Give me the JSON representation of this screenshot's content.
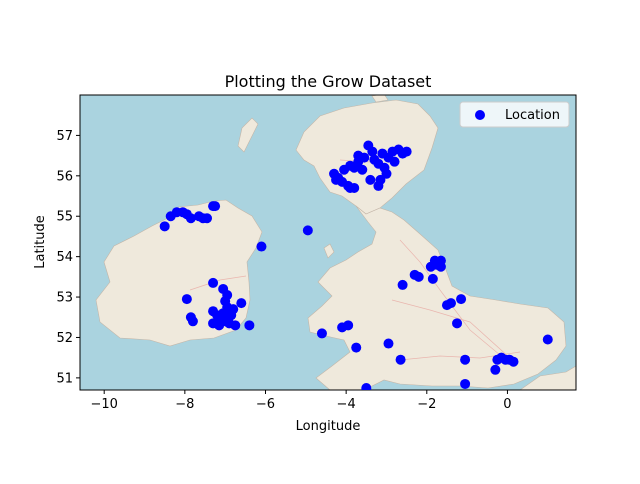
{
  "chart_data": {
    "type": "scatter",
    "title": "Plotting the Grow Dataset",
    "xlabel": "Longitude",
    "ylabel": "Latitude",
    "xlim": [
      -10.6,
      1.7
    ],
    "ylim": [
      50.7,
      58.0
    ],
    "xticks": [
      -10,
      -8,
      -6,
      -4,
      -2,
      0
    ],
    "yticks": [
      51,
      52,
      53,
      54,
      55,
      56,
      57
    ],
    "grid": false,
    "legend": {
      "position": "top-right",
      "label": "Location"
    },
    "marker_color": "#0000ff",
    "background": "map of the British Isles",
    "series": [
      {
        "name": "Location",
        "points": [
          [
            -8.5,
            54.75
          ],
          [
            -8.35,
            55.0
          ],
          [
            -8.2,
            55.1
          ],
          [
            -8.05,
            55.1
          ],
          [
            -7.95,
            55.05
          ],
          [
            -7.85,
            54.95
          ],
          [
            -7.65,
            55.0
          ],
          [
            -7.55,
            54.95
          ],
          [
            -7.45,
            54.95
          ],
          [
            -7.25,
            55.25
          ],
          [
            -7.3,
            55.25
          ],
          [
            -6.1,
            54.25
          ],
          [
            -4.95,
            54.65
          ],
          [
            -7.3,
            53.35
          ],
          [
            -7.95,
            52.95
          ],
          [
            -7.85,
            52.5
          ],
          [
            -7.8,
            52.4
          ],
          [
            -7.05,
            53.2
          ],
          [
            -6.95,
            53.05
          ],
          [
            -7.0,
            52.9
          ],
          [
            -6.8,
            52.7
          ],
          [
            -6.6,
            52.85
          ],
          [
            -7.3,
            52.65
          ],
          [
            -7.2,
            52.55
          ],
          [
            -7.1,
            52.45
          ],
          [
            -7.0,
            52.4
          ],
          [
            -6.9,
            52.35
          ],
          [
            -7.3,
            52.35
          ],
          [
            -7.15,
            52.3
          ],
          [
            -6.85,
            52.55
          ],
          [
            -6.75,
            52.3
          ],
          [
            -6.4,
            52.3
          ],
          [
            -6.95,
            52.75
          ],
          [
            -7.05,
            52.6
          ],
          [
            -4.6,
            52.1
          ],
          [
            -4.1,
            52.25
          ],
          [
            -3.95,
            52.3
          ],
          [
            -3.75,
            51.75
          ],
          [
            -3.5,
            50.75
          ],
          [
            -2.95,
            51.85
          ],
          [
            -2.65,
            51.45
          ],
          [
            -2.6,
            53.3
          ],
          [
            -2.3,
            53.55
          ],
          [
            -2.2,
            53.5
          ],
          [
            -1.85,
            53.45
          ],
          [
            -1.5,
            52.8
          ],
          [
            -1.4,
            52.85
          ],
          [
            -1.25,
            52.35
          ],
          [
            -1.15,
            52.95
          ],
          [
            -1.05,
            51.45
          ],
          [
            -1.05,
            50.85
          ],
          [
            -1.9,
            53.75
          ],
          [
            -1.8,
            53.9
          ],
          [
            -1.75,
            53.8
          ],
          [
            -1.65,
            53.75
          ],
          [
            -1.65,
            53.9
          ],
          [
            -0.3,
            51.2
          ],
          [
            -0.25,
            51.45
          ],
          [
            -0.15,
            51.5
          ],
          [
            -0.05,
            51.45
          ],
          [
            0.05,
            51.45
          ],
          [
            0.15,
            51.4
          ],
          [
            1.0,
            51.95
          ],
          [
            -4.3,
            56.05
          ],
          [
            -4.25,
            55.9
          ],
          [
            -4.1,
            55.85
          ],
          [
            -3.95,
            55.75
          ],
          [
            -3.8,
            55.7
          ],
          [
            -4.05,
            56.15
          ],
          [
            -3.9,
            56.25
          ],
          [
            -3.7,
            56.35
          ],
          [
            -3.7,
            56.5
          ],
          [
            -3.55,
            56.45
          ],
          [
            -3.45,
            56.75
          ],
          [
            -3.35,
            56.6
          ],
          [
            -3.3,
            56.4
          ],
          [
            -3.2,
            56.3
          ],
          [
            -3.1,
            56.55
          ],
          [
            -3.05,
            56.2
          ],
          [
            -3.0,
            56.05
          ],
          [
            -2.95,
            56.45
          ],
          [
            -2.85,
            56.6
          ],
          [
            -2.8,
            56.35
          ],
          [
            -2.7,
            56.65
          ],
          [
            -2.6,
            56.55
          ],
          [
            -2.5,
            56.6
          ],
          [
            -3.2,
            55.75
          ],
          [
            -3.15,
            55.9
          ],
          [
            -3.4,
            55.9
          ],
          [
            -3.6,
            56.15
          ],
          [
            -3.8,
            56.2
          ],
          [
            -4.2,
            55.95
          ],
          [
            -3.9,
            55.7
          ]
        ]
      }
    ]
  }
}
